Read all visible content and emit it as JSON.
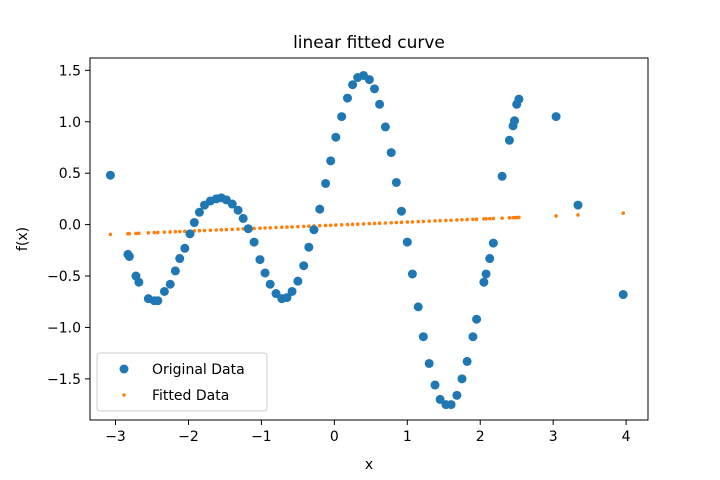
{
  "chart_data": {
    "type": "scatter",
    "title": "linear fitted curve",
    "xlabel": "x",
    "ylabel": "f(x)",
    "xlim": [
      -3.35,
      4.3
    ],
    "ylim": [
      -1.9,
      1.62
    ],
    "x_ticks": [
      -3,
      -2,
      -1,
      0,
      1,
      2,
      3,
      4
    ],
    "y_ticks": [
      -1.5,
      -1.0,
      -0.5,
      0.0,
      0.5,
      1.0,
      1.5
    ],
    "x_tick_labels": [
      "−3",
      "−2",
      "−1",
      "0",
      "1",
      "2",
      "3",
      "4"
    ],
    "y_tick_labels": [
      "−1.5",
      "−1.0",
      "−0.5",
      "0.0",
      "0.5",
      "1.0",
      "1.5"
    ],
    "grid": false,
    "legend_position": "lower-left",
    "series": [
      {
        "name": "Original Data",
        "marker": "circle",
        "color": "#1f77b4",
        "points": [
          [
            -3.07,
            0.48
          ],
          [
            -2.83,
            -0.29
          ],
          [
            -2.81,
            -0.31
          ],
          [
            -2.72,
            -0.5
          ],
          [
            -2.68,
            -0.56
          ],
          [
            -2.55,
            -0.72
          ],
          [
            -2.47,
            -0.74
          ],
          [
            -2.42,
            -0.74
          ],
          [
            -2.33,
            -0.65
          ],
          [
            -2.25,
            -0.58
          ],
          [
            -2.18,
            -0.45
          ],
          [
            -2.12,
            -0.33
          ],
          [
            -2.05,
            -0.23
          ],
          [
            -1.98,
            -0.09
          ],
          [
            -1.92,
            0.02
          ],
          [
            -1.85,
            0.12
          ],
          [
            -1.78,
            0.19
          ],
          [
            -1.7,
            0.23
          ],
          [
            -1.62,
            0.25
          ],
          [
            -1.55,
            0.26
          ],
          [
            -1.48,
            0.24
          ],
          [
            -1.4,
            0.2
          ],
          [
            -1.32,
            0.14
          ],
          [
            -1.25,
            0.06
          ],
          [
            -1.18,
            -0.04
          ],
          [
            -1.1,
            -0.17
          ],
          [
            -1.02,
            -0.34
          ],
          [
            -0.95,
            -0.47
          ],
          [
            -0.88,
            -0.58
          ],
          [
            -0.8,
            -0.67
          ],
          [
            -0.72,
            -0.72
          ],
          [
            -0.65,
            -0.71
          ],
          [
            -0.58,
            -0.65
          ],
          [
            -0.5,
            -0.55
          ],
          [
            -0.42,
            -0.4
          ],
          [
            -0.35,
            -0.22
          ],
          [
            -0.28,
            -0.05
          ],
          [
            -0.2,
            0.15
          ],
          [
            -0.12,
            0.4
          ],
          [
            -0.05,
            0.62
          ],
          [
            0.02,
            0.85
          ],
          [
            0.1,
            1.05
          ],
          [
            0.18,
            1.23
          ],
          [
            0.25,
            1.36
          ],
          [
            0.32,
            1.43
          ],
          [
            0.4,
            1.45
          ],
          [
            0.48,
            1.41
          ],
          [
            0.55,
            1.32
          ],
          [
            0.62,
            1.17
          ],
          [
            0.7,
            0.95
          ],
          [
            0.78,
            0.7
          ],
          [
            0.85,
            0.41
          ],
          [
            0.92,
            0.13
          ],
          [
            1.0,
            -0.17
          ],
          [
            1.07,
            -0.48
          ],
          [
            1.15,
            -0.8
          ],
          [
            1.22,
            -1.09
          ],
          [
            1.3,
            -1.35
          ],
          [
            1.38,
            -1.56
          ],
          [
            1.45,
            -1.7
          ],
          [
            1.53,
            -1.75
          ],
          [
            1.6,
            -1.75
          ],
          [
            1.68,
            -1.66
          ],
          [
            1.75,
            -1.5
          ],
          [
            1.82,
            -1.33
          ],
          [
            1.9,
            -1.09
          ],
          [
            1.95,
            -0.92
          ],
          [
            2.05,
            -0.56
          ],
          [
            2.08,
            -0.48
          ],
          [
            2.13,
            -0.33
          ],
          [
            2.18,
            -0.18
          ],
          [
            2.3,
            0.47
          ],
          [
            2.4,
            0.82
          ],
          [
            2.45,
            0.96
          ],
          [
            2.47,
            1.01
          ],
          [
            2.5,
            1.17
          ],
          [
            2.53,
            1.22
          ],
          [
            3.04,
            1.05
          ],
          [
            3.34,
            0.19
          ],
          [
            3.96,
            -0.68
          ]
        ]
      },
      {
        "name": "Fitted Data",
        "marker": "point",
        "color": "#ff7f0e",
        "line": {
          "slope": 0.0295,
          "intercept": -0.005
        },
        "x": [
          -3.07,
          -2.83,
          -2.81,
          -2.72,
          -2.68,
          -2.55,
          -2.47,
          -2.42,
          -2.33,
          -2.25,
          -2.18,
          -2.12,
          -2.05,
          -1.98,
          -1.92,
          -1.85,
          -1.78,
          -1.7,
          -1.62,
          -1.55,
          -1.48,
          -1.4,
          -1.32,
          -1.25,
          -1.18,
          -1.1,
          -1.02,
          -0.95,
          -0.88,
          -0.8,
          -0.72,
          -0.65,
          -0.58,
          -0.5,
          -0.42,
          -0.35,
          -0.28,
          -0.2,
          -0.12,
          -0.05,
          0.02,
          0.1,
          0.18,
          0.25,
          0.32,
          0.4,
          0.48,
          0.55,
          0.62,
          0.7,
          0.78,
          0.85,
          0.92,
          1.0,
          1.07,
          1.15,
          1.22,
          1.3,
          1.38,
          1.45,
          1.53,
          1.6,
          1.68,
          1.75,
          1.82,
          1.9,
          1.95,
          2.05,
          2.08,
          2.13,
          2.18,
          2.3,
          2.4,
          2.45,
          2.47,
          2.5,
          2.53,
          3.04,
          3.34,
          3.96
        ]
      }
    ]
  }
}
